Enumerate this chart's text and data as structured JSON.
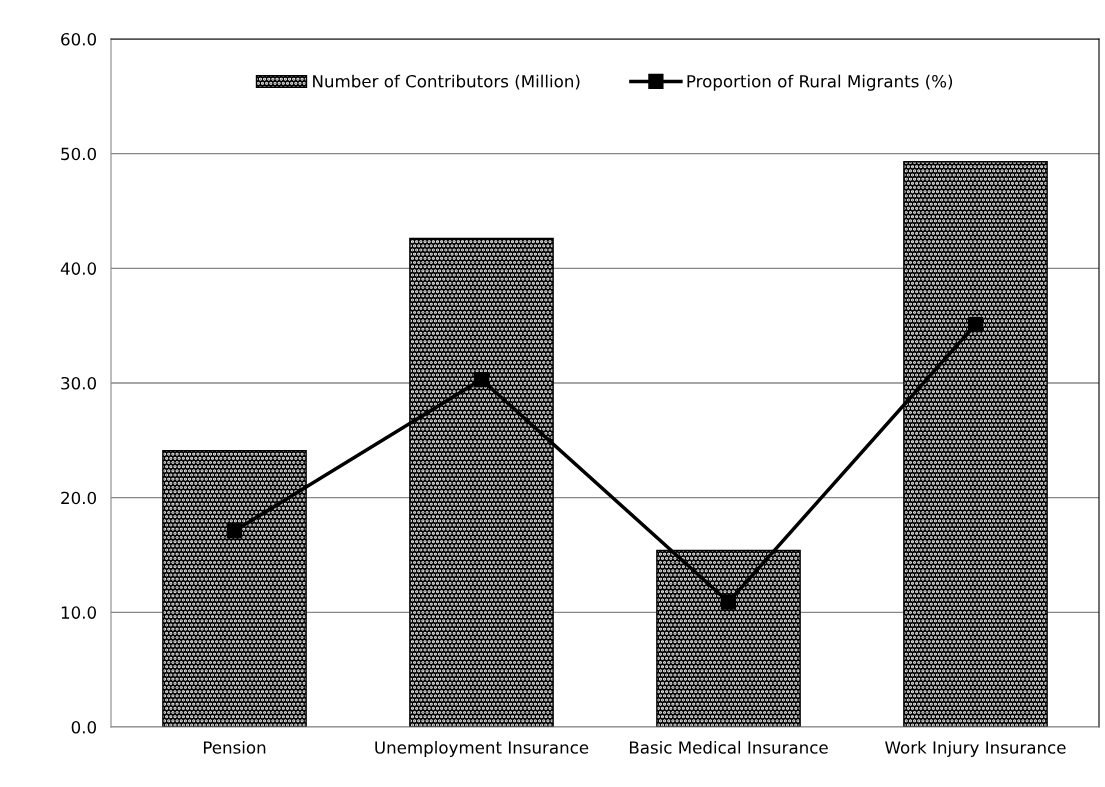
{
  "chart_data": {
    "type": "bar",
    "categories": [
      "Pension",
      "Unemployment Insurance",
      "Basic Medical Insurance",
      "Work Injury Insurance"
    ],
    "series": [
      {
        "name": "Number of Contributors (Million)",
        "color": "#000000",
        "values": [
          24.1,
          42.6,
          15.4,
          49.3
        ]
      },
      {
        "name": "Proportion of Rural Migrants (%)",
        "type": "line",
        "color": "#000000",
        "values": [
          17.1,
          30.3,
          10.9,
          35.1
        ]
      }
    ],
    "ylim": [
      0,
      60
    ],
    "yticks": [
      {
        "value": 0,
        "label": "0.0"
      },
      {
        "value": 10,
        "label": "10.0"
      },
      {
        "value": 20,
        "label": "20.0"
      },
      {
        "value": 30,
        "label": "30.0"
      },
      {
        "value": 40,
        "label": "40.0"
      },
      {
        "value": 50,
        "label": "50.0"
      },
      {
        "value": 60,
        "label": "60.0"
      }
    ],
    "grid": "y",
    "legend": "top",
    "marker": "square",
    "line_style": "solid"
  }
}
